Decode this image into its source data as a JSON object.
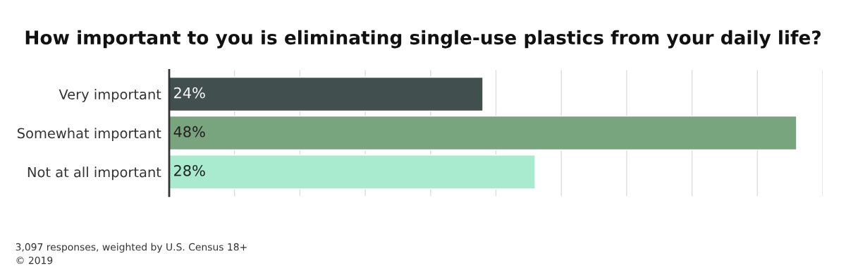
{
  "chart_data": {
    "type": "bar",
    "orientation": "horizontal",
    "title": "How important to you is eliminating single-use plastics from your daily life?",
    "categories": [
      "Very important",
      "Somewhat important",
      "Not at all important"
    ],
    "values": [
      24,
      48,
      28
    ],
    "colors": [
      "#414f4f",
      "#78a47e",
      "#a8ebcf"
    ],
    "value_labels": [
      "24%",
      "48%",
      "28%"
    ],
    "xlim": [
      0,
      50
    ],
    "xticks": [
      {
        "value": 0,
        "label": null
      },
      {
        "value": 5,
        "label": null
      },
      {
        "value": 10,
        "label": null
      },
      {
        "value": 15,
        "label": null
      },
      {
        "value": 20,
        "label": null
      },
      {
        "value": 25,
        "label": null
      },
      {
        "value": 30,
        "label": null
      },
      {
        "value": 35,
        "label": null
      },
      {
        "value": 40,
        "label": null
      },
      {
        "value": 45,
        "label": null
      },
      {
        "value": 50,
        "label": null
      }
    ],
    "tick_labels": "y",
    "grid": "x",
    "annotations": [
      "3,097 responses, weighted by U.S. Census 18+",
      "© 2019"
    ]
  }
}
